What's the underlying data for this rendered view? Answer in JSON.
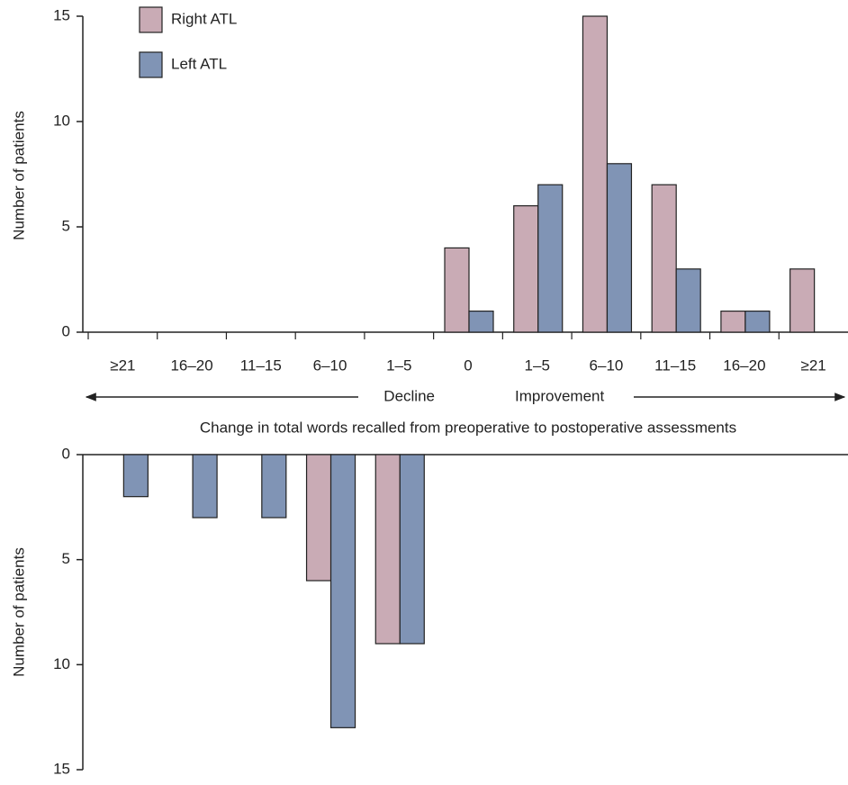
{
  "chart_data": [
    {
      "type": "bar",
      "categories": [
        "≥21",
        "16–20",
        "11–15",
        "6–10",
        "1–5",
        "0",
        "1–5",
        "6–10",
        "11–15",
        "16–20",
        "≥21"
      ],
      "series": [
        {
          "name": "Right ATL",
          "color": "#c9abb5",
          "values": [
            0,
            0,
            0,
            0,
            0,
            4,
            6,
            15,
            7,
            1,
            3
          ]
        },
        {
          "name": "Left ATL",
          "color": "#8094b5",
          "values": [
            0,
            0,
            0,
            0,
            0,
            1,
            7,
            8,
            3,
            1,
            0
          ]
        }
      ],
      "y_label": "Number of patients",
      "ylim": [
        0,
        15
      ],
      "yticks": [
        0,
        5,
        10,
        15
      ],
      "annotations": [
        "Decline",
        "Improvement"
      ],
      "x_label": "Change in total words recalled from preoperative to postoperative assessments",
      "legend": "top-left"
    },
    {
      "type": "bar",
      "categories": [
        null,
        null,
        null,
        null,
        null,
        null,
        null,
        null,
        null,
        null,
        null
      ],
      "series": [
        {
          "color": "#c9abb5",
          "values": [
            0,
            0,
            0,
            6,
            9,
            0,
            0,
            0,
            0,
            0,
            0
          ]
        },
        {
          "color": "#8094b5",
          "values": [
            2,
            3,
            3,
            13,
            9,
            0,
            0,
            0,
            0,
            0,
            0
          ]
        }
      ],
      "y_label": "Number of patients",
      "ylim": [
        0,
        15
      ],
      "yticks": [
        0,
        5,
        10,
        15
      ],
      "y_inverted": true
    }
  ]
}
